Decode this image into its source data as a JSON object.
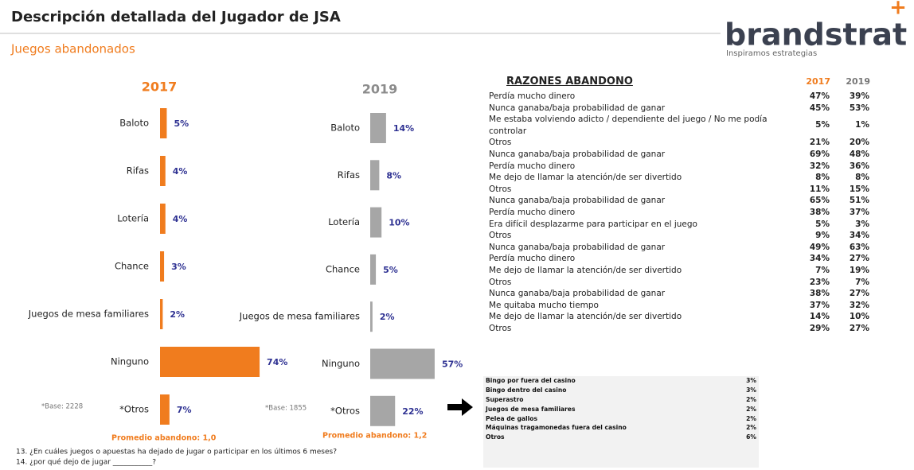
{
  "header": {
    "title": "Descripción detallada del Jugador de JSA",
    "subtitle": "Juegos abandonados",
    "logo": "brandstrat",
    "tagline": "Inspiramos estrategias"
  },
  "chart_data": [
    {
      "type": "bar",
      "orientation": "horizontal",
      "title": "2017",
      "title_color": "#f07c1e",
      "color": "#f07c1e",
      "categories": [
        "Baloto",
        "Rifas",
        "Lotería",
        "Chance",
        "Juegos de mesa familiares",
        "Ninguno",
        "*Otros"
      ],
      "values": [
        5,
        4,
        4,
        3,
        2,
        74,
        7
      ],
      "value_labels": [
        "5%",
        "4%",
        "4%",
        "3%",
        "2%",
        "74%",
        "7%"
      ],
      "base_note": "*Base: 2228",
      "average_note": "Promedio abandono: 1,0"
    },
    {
      "type": "bar",
      "orientation": "horizontal",
      "title": "2019",
      "title_color": "#8c8c8c",
      "color": "#a6a6a6",
      "categories": [
        "Baloto",
        "Rifas",
        "Lotería",
        "Chance",
        "Juegos de mesa familiares",
        "Ninguno",
        "*Otros"
      ],
      "values": [
        14,
        8,
        10,
        5,
        2,
        57,
        22
      ],
      "value_labels": [
        "14%",
        "8%",
        "10%",
        "5%",
        "2%",
        "57%",
        "22%"
      ],
      "base_note": "*Base: 1855",
      "average_note": "Promedio abandono: 1,2"
    }
  ],
  "reasons_table": {
    "header": [
      "RAZONES ABANDONO",
      "2017",
      "2019"
    ],
    "rows": [
      [
        "Perdía mucho dinero",
        "47%",
        "39%"
      ],
      [
        "Nunca ganaba/baja probabilidad de ganar",
        "45%",
        "53%"
      ],
      [
        "Me estaba volviendo adicto / dependiente del juego / No me podía controlar",
        "5%",
        "1%"
      ],
      [
        "Otros",
        "21%",
        "20%"
      ],
      [
        "Nunca ganaba/baja probabilidad de ganar",
        "69%",
        "48%"
      ],
      [
        "Perdía mucho dinero",
        "32%",
        "36%"
      ],
      [
        "Me dejo de llamar la atención/de ser divertido",
        "8%",
        "8%"
      ],
      [
        "Otros",
        "11%",
        "15%"
      ],
      [
        "Nunca ganaba/baja probabilidad de ganar",
        "65%",
        "51%"
      ],
      [
        "Perdía mucho dinero",
        "38%",
        "37%"
      ],
      [
        "Era difícil desplazarme para participar en el juego",
        "5%",
        "3%"
      ],
      [
        "Otros",
        "9%",
        "34%"
      ],
      [
        "Nunca ganaba/baja probabilidad de ganar",
        "49%",
        "63%"
      ],
      [
        "Perdía mucho dinero",
        "34%",
        "27%"
      ],
      [
        "Me dejo de llamar la atención/de ser divertido",
        "7%",
        "19%"
      ],
      [
        "Otros",
        "23%",
        "7%"
      ],
      [
        "Nunca ganaba/baja probabilidad de ganar",
        "38%",
        "27%"
      ],
      [
        "Me quitaba mucho tiempo",
        "37%",
        "32%"
      ],
      [
        "Me dejo de llamar la atención/de ser divertido",
        "14%",
        "10%"
      ],
      [
        "Otros",
        "29%",
        "27%"
      ]
    ]
  },
  "otros_table": {
    "rows": [
      [
        "Bingo por fuera del casino",
        "3%"
      ],
      [
        "Bingo dentro del casino",
        "3%"
      ],
      [
        "Superastro",
        "2%"
      ],
      [
        "Juegos de mesa familiares",
        "2%"
      ],
      [
        "Pelea de gallos",
        "2%"
      ],
      [
        "Máquinas tragamonedas fuera del casino",
        "2%"
      ],
      [
        "Otros",
        "6%"
      ]
    ]
  },
  "footnotes": [
    "13. ¿En cuáles juegos o apuestas ha dejado de jugar o participar en los últimos 6 meses?",
    "14. ¿por qué dejo de jugar ___________?"
  ]
}
